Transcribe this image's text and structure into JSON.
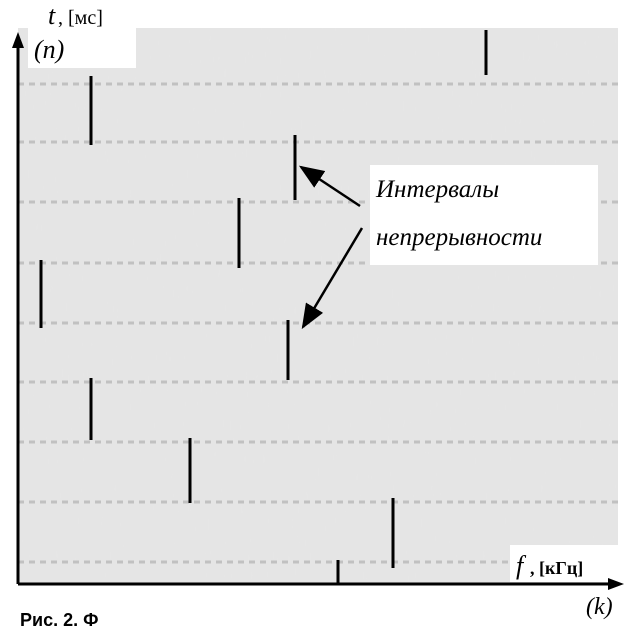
{
  "axes": {
    "y_label": "t",
    "y_unit": ", [мс]",
    "y_index": "(n)",
    "x_label": "f",
    "x_unit": ", [кГц]",
    "x_index": "(k)"
  },
  "annotation": {
    "lines": [
      "Интервалы",
      "непрерывности"
    ]
  },
  "caption": "Рис. 2. Ф"
}
